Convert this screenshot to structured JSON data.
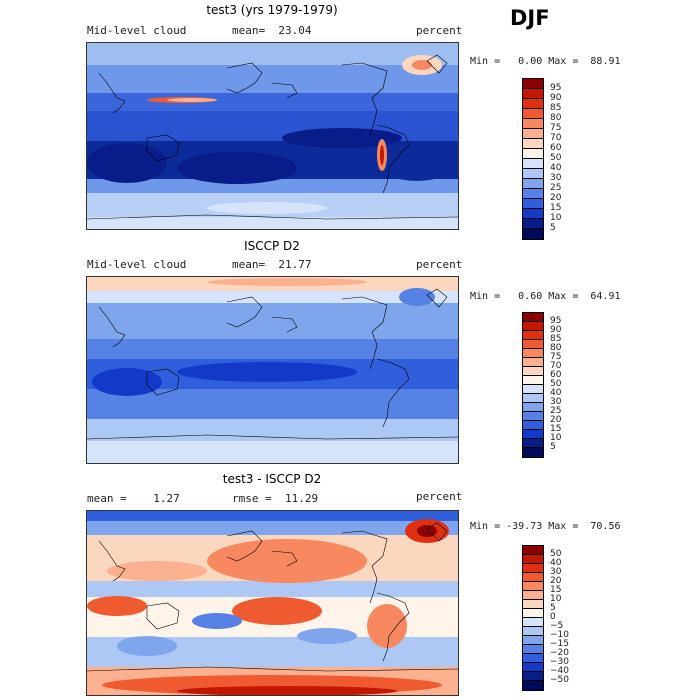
{
  "season": "DJF",
  "panels": [
    {
      "title": "test3 (yrs 1979-1979)",
      "variable": "Mid-level cloud",
      "stat_left": "mean=  23.04",
      "units": "percent",
      "minmax": "Min =   0.00 Max =  88.91",
      "colorbar": {
        "labels": [
          "95",
          "90",
          "85",
          "80",
          "75",
          "70",
          "60",
          "50",
          "40",
          "30",
          "25",
          "20",
          "15",
          "10",
          "5"
        ],
        "colors": [
          "#8b0000",
          "#c21800",
          "#e03010",
          "#f05a30",
          "#f88860",
          "#fbb090",
          "#fcd7c0",
          "#fff4ea",
          "#d6e4fb",
          "#aec8f5",
          "#7fa6ec",
          "#5682e6",
          "#2f5fdc",
          "#1339c8",
          "#081d8a",
          "#000a5a"
        ]
      }
    },
    {
      "title": "ISCCP D2",
      "variable": "Mid-level cloud",
      "stat_left": "mean=  21.77",
      "units": "percent",
      "minmax": "Min =   0.60 Max =  64.91",
      "colorbar": {
        "labels": [
          "95",
          "90",
          "85",
          "80",
          "75",
          "70",
          "60",
          "50",
          "40",
          "30",
          "25",
          "20",
          "15",
          "10",
          "5"
        ],
        "colors": [
          "#8b0000",
          "#c21800",
          "#e03010",
          "#f05a30",
          "#f88860",
          "#fbb090",
          "#fcd7c0",
          "#fff4ea",
          "#d6e4fb",
          "#aec8f5",
          "#7fa6ec",
          "#5682e6",
          "#2f5fdc",
          "#1339c8",
          "#081d8a",
          "#000a5a"
        ]
      }
    },
    {
      "title": "test3 - ISCCP D2",
      "stat_left": "mean =    1.27",
      "stat_mid": "rmse =  11.29",
      "units": "percent",
      "minmax": "Min = -39.73 Max =  70.56",
      "colorbar": {
        "labels": [
          "50",
          "40",
          "30",
          "20",
          "15",
          "10",
          "5",
          "0",
          "−5",
          "−10",
          "−15",
          "−20",
          "−30",
          "−40",
          "−50"
        ],
        "colors": [
          "#8b0000",
          "#c21800",
          "#e03010",
          "#f05a30",
          "#f88860",
          "#fbb090",
          "#fcd7c0",
          "#fff4ea",
          "#d6e4fb",
          "#aec8f5",
          "#7fa6ec",
          "#5682e6",
          "#2f5fdc",
          "#1339c8",
          "#081d8a",
          "#000a5a"
        ]
      }
    }
  ]
}
